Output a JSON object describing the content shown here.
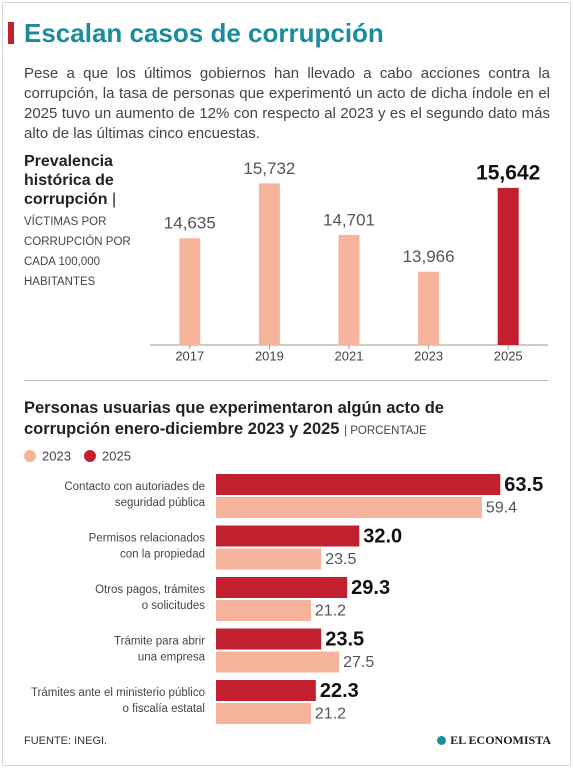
{
  "header": {
    "title": "Escalan casos de corrupción",
    "intro": "Pese a que los últimos gobiernos han llevado a cabo acciones contra la corrupción, la tasa de personas que experimentó un acto de dicha índole en el 2025 tuvo un aumento de 12% con respecto al 2023 y es el segundo dato más alto de las últimas cinco encuestas."
  },
  "chart_data": [
    {
      "type": "bar",
      "title": "Prevalencia histórica de corrupción",
      "subtitle": "VÍCTIMAS POR CORRUPCIÓN POR CADA 100,000 HABITANTES",
      "categories": [
        "2017",
        "2019",
        "2021",
        "2023",
        "2025"
      ],
      "values": [
        14635,
        15732,
        14701,
        13966,
        15642
      ],
      "value_labels": [
        "14,635",
        "15,732",
        "14,701",
        "13,966",
        "15,642"
      ],
      "colors": [
        "#f7b49c",
        "#f7b49c",
        "#f7b49c",
        "#f7b49c",
        "#c2202f"
      ],
      "ylim": [
        12500,
        16000
      ]
    },
    {
      "type": "hbar",
      "title": "Personas usuarias que experimentaron algún acto de corrupción enero-diciembre 2023 y 2025",
      "subtitle": "PORCENTAJE",
      "categories": [
        [
          "Contacto con autoriades de",
          "seguridad pública"
        ],
        [
          "Permisos relacionados",
          "con la propiedad"
        ],
        [
          "Otros pagos, trámites",
          "o solicitudes"
        ],
        [
          "Trámite para abrir",
          "una empresa"
        ],
        [
          "Trámites ante el ministerio público",
          "o fiscalía estatal"
        ]
      ],
      "series": [
        {
          "name": "2023",
          "color": "#f7b49c",
          "values": [
            59.4,
            23.5,
            21.2,
            27.5,
            21.2
          ]
        },
        {
          "name": "2025",
          "color": "#c2202f",
          "values": [
            63.5,
            32.0,
            29.3,
            23.5,
            22.3
          ],
          "value_labels": [
            "63.5",
            "32.0",
            "29.3",
            "23.5",
            "22.3"
          ]
        }
      ],
      "xlim": [
        0,
        65
      ]
    }
  ],
  "footer": {
    "source": "FUENTE: INEGI.",
    "brand": "EL ECONOMISTA"
  }
}
